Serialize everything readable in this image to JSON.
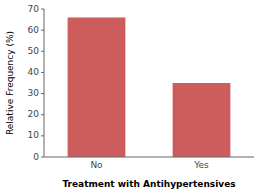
{
  "chart_data": {
    "type": "bar",
    "categories": [
      "No",
      "Yes"
    ],
    "values": [
      66.0,
      35.0
    ],
    "color": "#cd5c5c",
    "xlabel": "Treatment with Antihypertensives",
    "ylabel": "Relative Frequency (%)",
    "ylim": [
      0,
      70
    ],
    "yticks": [
      0,
      10,
      20,
      30,
      40,
      50,
      60,
      70
    ],
    "grid": false
  }
}
